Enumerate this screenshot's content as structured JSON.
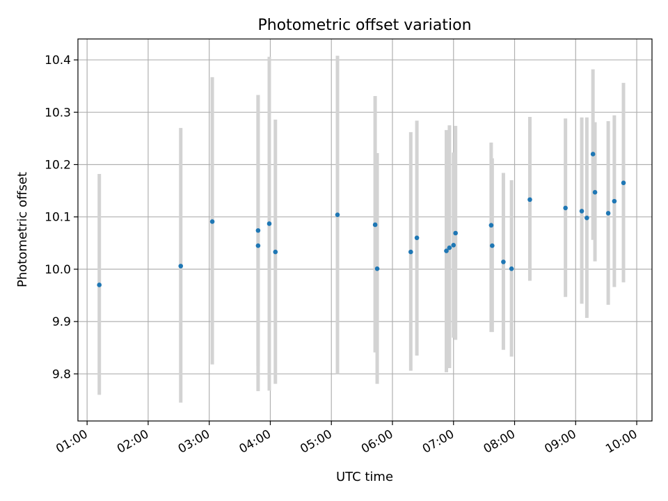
{
  "chart_data": {
    "type": "scatter",
    "title": "Photometric offset variation",
    "xlabel": "UTC time",
    "ylabel": "Photometric offset",
    "grid": true,
    "xlim": [
      "00:51",
      "10:15"
    ],
    "ylim": [
      9.71,
      10.44
    ],
    "x_ticks": [
      "01:00",
      "02:00",
      "03:00",
      "04:00",
      "05:00",
      "06:00",
      "07:00",
      "08:00",
      "09:00",
      "10:00"
    ],
    "y_ticks": [
      9.8,
      9.9,
      10.0,
      10.1,
      10.2,
      10.3,
      10.4
    ],
    "y_tick_labels": [
      "9.8",
      "9.9",
      "10.0",
      "10.1",
      "10.2",
      "10.3",
      "10.4"
    ],
    "colors": {
      "points": "#1f77b4",
      "error_bars": "#d3d3d3",
      "grid": "#b0b0b0"
    },
    "points": [
      {
        "time": "01:12",
        "y": 9.97,
        "ylow": 9.76,
        "yhigh": 10.182
      },
      {
        "time": "02:32",
        "y": 10.006,
        "ylow": 9.745,
        "yhigh": 10.27
      },
      {
        "time": "03:03",
        "y": 10.091,
        "ylow": 9.818,
        "yhigh": 10.367
      },
      {
        "time": "03:48",
        "y": 10.045,
        "ylow": 9.767,
        "yhigh": 10.333
      },
      {
        "time": "03:48",
        "y": 10.074,
        "ylow": 9.815,
        "yhigh": 10.333
      },
      {
        "time": "03:59",
        "y": 10.087,
        "ylow": 9.768,
        "yhigh": 10.406
      },
      {
        "time": "04:05",
        "y": 10.033,
        "ylow": 9.781,
        "yhigh": 10.286
      },
      {
        "time": "05:06",
        "y": 10.104,
        "ylow": 9.8,
        "yhigh": 10.408
      },
      {
        "time": "05:43",
        "y": 10.085,
        "ylow": 9.841,
        "yhigh": 10.331
      },
      {
        "time": "05:45",
        "y": 10.001,
        "ylow": 9.781,
        "yhigh": 10.222
      },
      {
        "time": "06:18",
        "y": 10.033,
        "ylow": 9.806,
        "yhigh": 10.262
      },
      {
        "time": "06:24",
        "y": 10.06,
        "ylow": 9.835,
        "yhigh": 10.284
      },
      {
        "time": "06:53",
        "y": 10.035,
        "ylow": 9.803,
        "yhigh": 10.266
      },
      {
        "time": "06:56",
        "y": 10.041,
        "ylow": 9.811,
        "yhigh": 10.275
      },
      {
        "time": "07:00",
        "y": 10.046,
        "ylow": 9.869,
        "yhigh": 10.223
      },
      {
        "time": "07:02",
        "y": 10.069,
        "ylow": 9.865,
        "yhigh": 10.274
      },
      {
        "time": "07:37",
        "y": 10.084,
        "ylow": 9.88,
        "yhigh": 10.242
      },
      {
        "time": "07:38",
        "y": 10.045,
        "ylow": 9.88,
        "yhigh": 10.212
      },
      {
        "time": "07:49",
        "y": 10.014,
        "ylow": 9.846,
        "yhigh": 10.184
      },
      {
        "time": "07:57",
        "y": 10.001,
        "ylow": 9.833,
        "yhigh": 10.17
      },
      {
        "time": "08:15",
        "y": 10.133,
        "ylow": 9.978,
        "yhigh": 10.291
      },
      {
        "time": "08:50",
        "y": 10.117,
        "ylow": 9.947,
        "yhigh": 10.288
      },
      {
        "time": "09:06",
        "y": 10.111,
        "ylow": 9.934,
        "yhigh": 10.29
      },
      {
        "time": "09:11",
        "y": 10.098,
        "ylow": 9.907,
        "yhigh": 10.29
      },
      {
        "time": "09:17",
        "y": 10.22,
        "ylow": 10.056,
        "yhigh": 10.382
      },
      {
        "time": "09:19",
        "y": 10.147,
        "ylow": 10.015,
        "yhigh": 10.281
      },
      {
        "time": "09:32",
        "y": 10.107,
        "ylow": 9.932,
        "yhigh": 10.283
      },
      {
        "time": "09:38",
        "y": 10.13,
        "ylow": 9.966,
        "yhigh": 10.294
      },
      {
        "time": "09:47",
        "y": 10.165,
        "ylow": 9.975,
        "yhigh": 10.356
      }
    ]
  }
}
